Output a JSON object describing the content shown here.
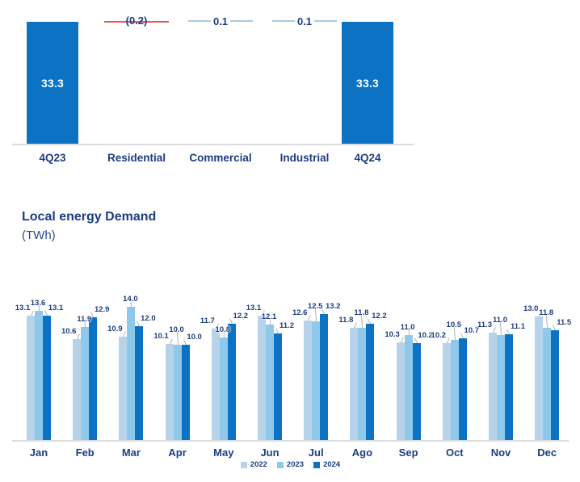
{
  "title": {
    "text": "Local energy Demand",
    "unit": "(TWh)"
  },
  "colors": {
    "primary_bar": "#0b72c4",
    "navy_text": "#1d3d82",
    "series_2022": "#b7d3e9",
    "series_2023": "#8ec9ec",
    "series_2024": "#0b72c4",
    "negative_line": "#d95f5a",
    "positive_line": "#a9cbe2",
    "axis_line": "#dcdcdc",
    "leader_line": "#b3b3b3",
    "bar_value_text": "#ffffff"
  },
  "chart_data": [
    {
      "type": "bar",
      "subtype": "waterfall",
      "title": "",
      "categories": [
        "4Q23",
        "Residential",
        "Commercial",
        "Industrial",
        "4Q24"
      ],
      "values": [
        33.3,
        -0.2,
        0.1,
        0.1,
        33.3
      ],
      "steps": [
        {
          "label": "4Q23",
          "value": 33.3,
          "display": "33.3",
          "kind": "total"
        },
        {
          "label": "Residential",
          "value": -0.2,
          "display": "(0.2)",
          "kind": "delta"
        },
        {
          "label": "Commercial",
          "value": 0.1,
          "display": "0.1",
          "kind": "delta"
        },
        {
          "label": "Industrial",
          "value": 0.1,
          "display": "0.1",
          "kind": "delta"
        },
        {
          "label": "4Q24",
          "value": 33.3,
          "display": "33.3",
          "kind": "total"
        }
      ],
      "ylim": [
        0,
        33.3
      ],
      "grid": false,
      "legend": false
    },
    {
      "type": "bar",
      "title": "Local energy Demand",
      "ylabel": "(TWh)",
      "categories": [
        "Jan",
        "Feb",
        "Mar",
        "Apr",
        "May",
        "Jun",
        "Jul",
        "Ago",
        "Sep",
        "Oct",
        "Nov",
        "Dec"
      ],
      "series": [
        {
          "name": "2022",
          "values": [
            13.1,
            10.6,
            10.9,
            10.1,
            11.7,
            13.1,
            12.6,
            11.8,
            10.3,
            10.2,
            11.3,
            13.0
          ]
        },
        {
          "name": "2023",
          "values": [
            13.6,
            11.9,
            14.0,
            10.0,
            10.8,
            12.1,
            12.5,
            11.8,
            11.0,
            10.5,
            11.0,
            11.8
          ]
        },
        {
          "name": "2024",
          "values": [
            13.1,
            12.9,
            12.0,
            10.0,
            12.2,
            11.2,
            13.2,
            12.2,
            10.2,
            10.7,
            11.1,
            11.5
          ]
        }
      ],
      "ylim": [
        0,
        14
      ],
      "grid": false,
      "value_labels": true,
      "legend_position": "bottom-center"
    }
  ],
  "legend": {
    "items": [
      {
        "label": "2022"
      },
      {
        "label": "2023"
      },
      {
        "label": "2024"
      }
    ]
  }
}
